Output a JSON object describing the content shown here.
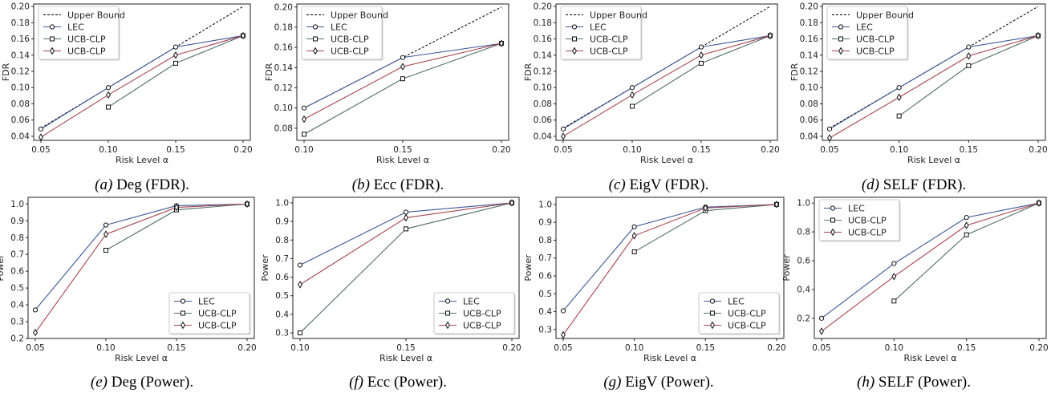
{
  "colors": {
    "upper_bound": "#000000",
    "lec": "#3a5794",
    "ucb_square": "#4f7064",
    "ucb_diamond": "#a8454f"
  },
  "chart_data": [
    {
      "id": "a",
      "type": "line",
      "caption_label": "(a)",
      "caption_text": "Deg (FDR).",
      "xlabel": "Risk Level α",
      "ylabel": "FDR",
      "x": [
        0.05,
        0.1,
        0.15,
        0.2
      ],
      "xticks": [
        "0.05",
        "0.10",
        "0.15",
        "0.20"
      ],
      "ylim": [
        0.035,
        0.203
      ],
      "yticks": [
        "0.04",
        "0.06",
        "0.08",
        "0.10",
        "0.12",
        "0.14",
        "0.16",
        "0.18",
        "0.20"
      ],
      "legend_loc": "top-left",
      "series": [
        {
          "name": "Upper Bound",
          "style": "dashed",
          "color": "#000000",
          "values": [
            0.05,
            0.1,
            0.15,
            0.2
          ]
        },
        {
          "name": "LEC",
          "marker": "circle",
          "color": "#3a5794",
          "values": [
            0.049,
            0.1,
            0.15,
            0.164
          ]
        },
        {
          "name": "UCB-CLP",
          "marker": "square",
          "color": "#4f7064",
          "values": [
            null,
            0.076,
            0.13,
            0.164
          ]
        },
        {
          "name": "UCB-CLP",
          "marker": "diamond",
          "color": "#a8454f",
          "values": [
            0.039,
            0.091,
            0.14,
            0.164
          ]
        }
      ]
    },
    {
      "id": "b",
      "type": "line",
      "caption_label": "(b)",
      "caption_text": "Ecc (FDR).",
      "xlabel": "Risk Level α",
      "ylabel": "FDR",
      "x": [
        0.1,
        0.15,
        0.2
      ],
      "xticks": [
        "0.10",
        "0.15",
        "0.20"
      ],
      "ylim": [
        0.068,
        0.203
      ],
      "yticks": [
        "0.08",
        "0.10",
        "0.12",
        "0.14",
        "0.16",
        "0.18",
        "0.20"
      ],
      "legend_loc": "top-left",
      "series": [
        {
          "name": "Upper Bound",
          "style": "dashed",
          "color": "#000000",
          "values": [
            0.1,
            0.15,
            0.2
          ]
        },
        {
          "name": "LEC",
          "marker": "circle",
          "color": "#3a5794",
          "values": [
            0.1,
            0.15,
            0.164
          ]
        },
        {
          "name": "UCB-CLP",
          "marker": "square",
          "color": "#4f7064",
          "values": [
            0.074,
            0.129,
            0.164
          ]
        },
        {
          "name": "UCB-CLP",
          "marker": "diamond",
          "color": "#a8454f",
          "values": [
            0.089,
            0.141,
            0.164
          ]
        }
      ]
    },
    {
      "id": "c",
      "type": "line",
      "caption_label": "(c)",
      "caption_text": "EigV (FDR).",
      "xlabel": "Risk Level α",
      "ylabel": "FDR",
      "x": [
        0.05,
        0.1,
        0.15,
        0.2
      ],
      "xticks": [
        "0.05",
        "0.10",
        "0.15",
        "0.20"
      ],
      "ylim": [
        0.035,
        0.203
      ],
      "yticks": [
        "0.04",
        "0.06",
        "0.08",
        "0.10",
        "0.12",
        "0.14",
        "0.16",
        "0.18",
        "0.20"
      ],
      "legend_loc": "top-left",
      "series": [
        {
          "name": "Upper Bound",
          "style": "dashed",
          "color": "#000000",
          "values": [
            0.05,
            0.1,
            0.15,
            0.2
          ]
        },
        {
          "name": "LEC",
          "marker": "circle",
          "color": "#3a5794",
          "values": [
            0.049,
            0.1,
            0.15,
            0.164
          ]
        },
        {
          "name": "UCB-CLP",
          "marker": "square",
          "color": "#4f7064",
          "values": [
            null,
            0.077,
            0.13,
            0.164
          ]
        },
        {
          "name": "UCB-CLP",
          "marker": "diamond",
          "color": "#a8454f",
          "values": [
            0.04,
            0.091,
            0.14,
            0.164
          ]
        }
      ]
    },
    {
      "id": "d",
      "type": "line",
      "caption_label": "(d)",
      "caption_text": "SELF (FDR).",
      "xlabel": "Risk Level α",
      "ylabel": "FDR",
      "x": [
        0.05,
        0.1,
        0.15,
        0.2
      ],
      "xticks": [
        "0.05",
        "0.10",
        "0.15",
        "0.20"
      ],
      "ylim": [
        0.035,
        0.203
      ],
      "yticks": [
        "0.04",
        "0.06",
        "0.08",
        "0.10",
        "0.12",
        "0.14",
        "0.16",
        "0.18",
        "0.20"
      ],
      "legend_loc": "top-left",
      "series": [
        {
          "name": "Upper Bound",
          "style": "dashed",
          "color": "#000000",
          "values": [
            0.05,
            0.1,
            0.15,
            0.2
          ]
        },
        {
          "name": "LEC",
          "marker": "circle",
          "color": "#3a5794",
          "values": [
            0.049,
            0.1,
            0.15,
            0.164
          ]
        },
        {
          "name": "UCB-CLP",
          "marker": "square",
          "color": "#4f7064",
          "values": [
            null,
            0.065,
            0.127,
            0.164
          ]
        },
        {
          "name": "UCB-CLP",
          "marker": "diamond",
          "color": "#a8454f",
          "values": [
            0.038,
            0.088,
            0.139,
            0.164
          ]
        }
      ]
    },
    {
      "id": "e",
      "type": "line",
      "caption_label": "(e)",
      "caption_text": "Deg (Power).",
      "xlabel": "Risk Level α",
      "ylabel": "Power",
      "x": [
        0.05,
        0.1,
        0.15,
        0.2
      ],
      "xticks": [
        "0.05",
        "0.10",
        "0.15",
        "0.20"
      ],
      "ylim": [
        0.2,
        1.04
      ],
      "yticks": [
        "0.2",
        "0.3",
        "0.4",
        "0.5",
        "0.6",
        "0.7",
        "0.8",
        "0.9",
        "1.0"
      ],
      "legend_loc": "bottom-right",
      "series": [
        {
          "name": "LEC",
          "marker": "circle",
          "color": "#3a5794",
          "values": [
            0.37,
            0.875,
            0.99,
            1.0
          ]
        },
        {
          "name": "UCB-CLP",
          "marker": "square",
          "color": "#4f7064",
          "values": [
            null,
            0.725,
            0.965,
            1.0
          ]
        },
        {
          "name": "UCB-CLP",
          "marker": "diamond",
          "color": "#a8454f",
          "values": [
            0.235,
            0.82,
            0.98,
            1.0
          ]
        }
      ]
    },
    {
      "id": "f",
      "type": "line",
      "caption_label": "(f)",
      "caption_text": "Ecc (Power).",
      "xlabel": "Risk Level α",
      "ylabel": "Power",
      "x": [
        0.1,
        0.15,
        0.2
      ],
      "xticks": [
        "0.10",
        "0.15",
        "0.20"
      ],
      "ylim": [
        0.27,
        1.03
      ],
      "yticks": [
        "0.3",
        "0.4",
        "0.5",
        "0.6",
        "0.7",
        "0.8",
        "0.9",
        "1.0"
      ],
      "legend_loc": "bottom-right",
      "series": [
        {
          "name": "LEC",
          "marker": "circle",
          "color": "#3a5794",
          "values": [
            0.665,
            0.95,
            1.0
          ]
        },
        {
          "name": "UCB-CLP",
          "marker": "square",
          "color": "#4f7064",
          "values": [
            0.3,
            0.86,
            1.0
          ]
        },
        {
          "name": "UCB-CLP",
          "marker": "diamond",
          "color": "#a8454f",
          "values": [
            0.56,
            0.92,
            1.0
          ]
        }
      ]
    },
    {
      "id": "g",
      "type": "line",
      "caption_label": "(g)",
      "caption_text": "EigV (Power).",
      "xlabel": "Risk Level α",
      "ylabel": "Power",
      "x": [
        0.05,
        0.1,
        0.15,
        0.2
      ],
      "xticks": [
        "0.05",
        "0.10",
        "0.15",
        "0.20"
      ],
      "ylim": [
        0.25,
        1.04
      ],
      "yticks": [
        "0.3",
        "0.4",
        "0.5",
        "0.6",
        "0.7",
        "0.8",
        "0.9",
        "1.0"
      ],
      "legend_loc": "bottom-right",
      "series": [
        {
          "name": "LEC",
          "marker": "circle",
          "color": "#3a5794",
          "values": [
            0.405,
            0.875,
            0.985,
            1.0
          ]
        },
        {
          "name": "UCB-CLP",
          "marker": "square",
          "color": "#4f7064",
          "values": [
            null,
            0.735,
            0.965,
            1.0
          ]
        },
        {
          "name": "UCB-CLP",
          "marker": "diamond",
          "color": "#a8454f",
          "values": [
            0.27,
            0.825,
            0.98,
            1.0
          ]
        }
      ]
    },
    {
      "id": "h",
      "type": "line",
      "caption_label": "(h)",
      "caption_text": "SELF (Power).",
      "xlabel": "Risk Level α",
      "ylabel": "Power",
      "x": [
        0.05,
        0.1,
        0.15,
        0.2
      ],
      "xticks": [
        "0.05",
        "0.10",
        "0.15",
        "0.20"
      ],
      "ylim": [
        0.06,
        1.04
      ],
      "yticks": [
        "0.2",
        "0.4",
        "0.6",
        "0.8",
        "1.0"
      ],
      "legend_loc": "top-left",
      "series": [
        {
          "name": "LEC",
          "marker": "circle",
          "color": "#3a5794",
          "values": [
            0.2,
            0.58,
            0.9,
            1.0
          ]
        },
        {
          "name": "UCB-CLP",
          "marker": "square",
          "color": "#4f7064",
          "values": [
            null,
            0.32,
            0.78,
            1.0
          ]
        },
        {
          "name": "UCB-CLP",
          "marker": "diamond",
          "color": "#a8454f",
          "values": [
            0.11,
            0.49,
            0.845,
            1.0
          ]
        }
      ]
    }
  ]
}
